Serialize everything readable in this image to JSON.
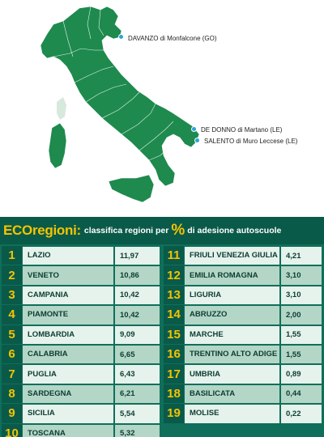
{
  "map": {
    "markers": [
      {
        "label": "DAVANZO di Monfalcone (GO)"
      },
      {
        "label": "DE DONNO di Martano (LE)"
      },
      {
        "label": "SALENTO di Muro Leccese (LE)"
      }
    ],
    "colors": {
      "land": "#1e8a4e",
      "borders": "#e8f2ea",
      "pin": "#2aa3d9"
    }
  },
  "header": {
    "brand": "ECOregioni:",
    "text_before": "classifica regioni per",
    "percent_symbol": "%",
    "text_after": "di adesione autoscuole"
  },
  "ranking": [
    {
      "rank": "1",
      "region": "LAZIO",
      "value": "11,97"
    },
    {
      "rank": "2",
      "region": "VENETO",
      "value": "10,86"
    },
    {
      "rank": "3",
      "region": "CAMPANIA",
      "value": "10,42"
    },
    {
      "rank": "4",
      "region": "PIAMONTE",
      "value": "10,42"
    },
    {
      "rank": "5",
      "region": "LOMBARDIA",
      "value": "9,09"
    },
    {
      "rank": "6",
      "region": "CALABRIA",
      "value": "6,65"
    },
    {
      "rank": "7",
      "region": "PUGLIA",
      "value": "6,43"
    },
    {
      "rank": "8",
      "region": "SARDEGNA",
      "value": "6,21"
    },
    {
      "rank": "9",
      "region": "SICILIA",
      "value": "5,54"
    },
    {
      "rank": "10",
      "region": "TOSCANA",
      "value": "5,32"
    },
    {
      "rank": "11",
      "region": "FRIULI VENEZIA GIULIA",
      "value": "4,21"
    },
    {
      "rank": "12",
      "region": "EMILIA ROMAGNA",
      "value": "3,10"
    },
    {
      "rank": "13",
      "region": "LIGURIA",
      "value": "3,10"
    },
    {
      "rank": "14",
      "region": "ABRUZZO",
      "value": "2,00"
    },
    {
      "rank": "15",
      "region": "MARCHE",
      "value": "1,55"
    },
    {
      "rank": "16",
      "region": "TRENTINO ALTO ADIGE",
      "value": "1,55"
    },
    {
      "rank": "17",
      "region": "UMBRIA",
      "value": "0,89"
    },
    {
      "rank": "18",
      "region": "BASILICATA",
      "value": "0,44"
    },
    {
      "rank": "19",
      "region": "MOLISE",
      "value": "0,22"
    }
  ],
  "colors": {
    "rank_number": "#f5c400",
    "brand": "#f5c400",
    "table_bg": "#0f6f5a",
    "row_light": "#e6f2ec",
    "row_dark": "#b3d6c6"
  }
}
